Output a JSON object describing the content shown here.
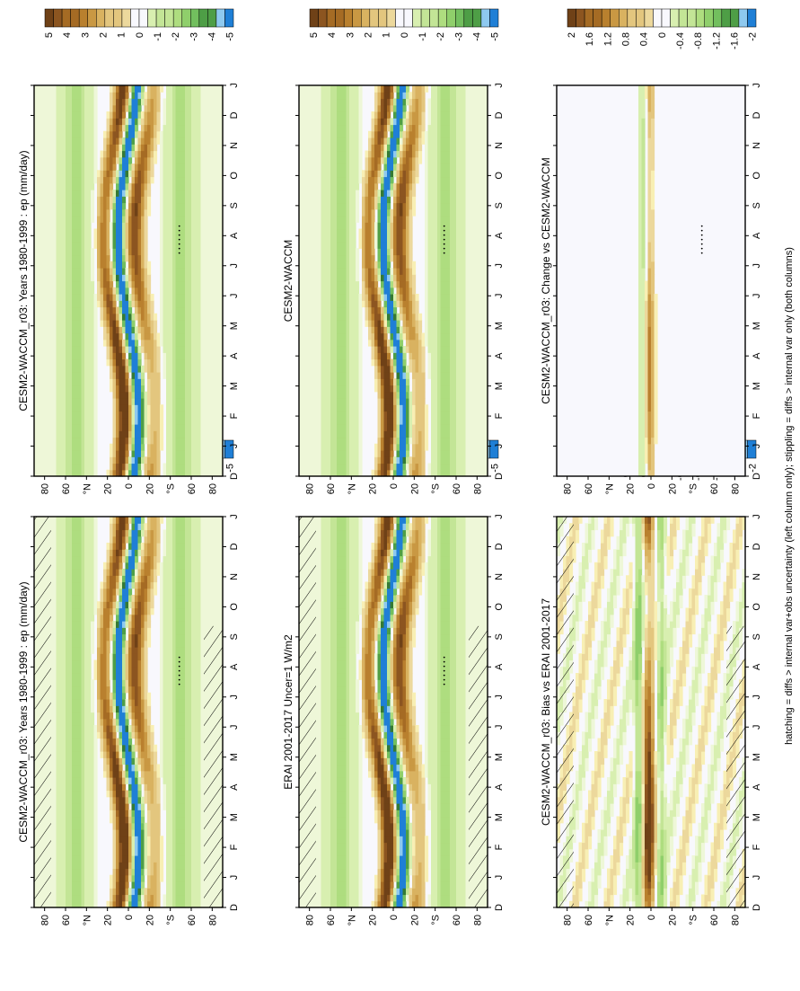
{
  "footnote": "hatching = diffs > internal var+obs uncertainty (left column only); stippling = diffs > internal var only (both columns)",
  "chart_data": [
    {
      "type": "heatmap",
      "title": "CESM2-WACCM_r03: Years 1980-1999 : ep (mm/day)",
      "x_ticks": [
        "D",
        "J",
        "F",
        "M",
        "A",
        "M",
        "J",
        "J",
        "A",
        "S",
        "O",
        "N",
        "D",
        "J"
      ],
      "y_ticks": [
        "80",
        "60",
        "°N",
        "20",
        "0",
        "20",
        "°S",
        "60",
        "80"
      ],
      "colorbar": {
        "labels": [
          "5",
          "4",
          "3",
          "2",
          "1",
          "0",
          "-1",
          "-2",
          "-3",
          "-4",
          "-5"
        ]
      },
      "hatching": true,
      "stippling": true,
      "field": {
        "kind": "climatology",
        "amplitude": 5
      }
    },
    {
      "type": "heatmap",
      "title": "CESM2-WACCM_r03: Years 1980-1999 : ep (mm/day)",
      "x_ticks": [
        "D",
        "J",
        "F",
        "M",
        "A",
        "M",
        "J",
        "J",
        "A",
        "S",
        "O",
        "N",
        "D",
        "J"
      ],
      "y_ticks": [
        "80",
        "60",
        "°N",
        "20",
        "0",
        "20",
        "°S",
        "60",
        "80"
      ],
      "colorbar": {
        "labels": [
          "5",
          "4",
          "3",
          "2",
          "1",
          "0",
          "-1",
          "-2",
          "-3",
          "-4",
          "-5"
        ]
      },
      "hatching": false,
      "stippling": true,
      "field": {
        "kind": "climatology",
        "amplitude": 5
      }
    },
    {
      "type": "heatmap",
      "title": "ERAI 2001-2017 Uncer=1 W/m2",
      "x_ticks": [
        "D",
        "J",
        "F",
        "M",
        "A",
        "M",
        "J",
        "J",
        "A",
        "S",
        "O",
        "N",
        "D",
        "J"
      ],
      "y_ticks": [
        "80",
        "60",
        "°N",
        "20",
        "0",
        "20",
        "°S",
        "60",
        "80"
      ],
      "colorbar": {
        "labels": [
          "5",
          "4",
          "3",
          "2",
          "1",
          "0",
          "-1",
          "-2",
          "-3",
          "-4",
          "-5"
        ]
      },
      "hatching": true,
      "stippling": true,
      "field": {
        "kind": "climatology",
        "amplitude": 5
      }
    },
    {
      "type": "heatmap",
      "title": "CESM2-WACCM",
      "x_ticks": [
        "D",
        "J",
        "F",
        "M",
        "A",
        "M",
        "J",
        "J",
        "A",
        "S",
        "O",
        "N",
        "D",
        "J"
      ],
      "y_ticks": [
        "80",
        "60",
        "°N",
        "20",
        "0",
        "20",
        "°S",
        "60",
        "80"
      ],
      "colorbar": {
        "labels": [
          "5",
          "4",
          "3",
          "2",
          "1",
          "0",
          "-1",
          "-2",
          "-3",
          "-4",
          "-5"
        ]
      },
      "hatching": false,
      "stippling": true,
      "field": {
        "kind": "climatology",
        "amplitude": 5
      }
    },
    {
      "type": "heatmap",
      "title": "CESM2-WACCM_r03: Bias vs ERAI 2001-2017",
      "x_ticks": [
        "D",
        "J",
        "F",
        "M",
        "A",
        "M",
        "J",
        "J",
        "A",
        "S",
        "O",
        "N",
        "D",
        "J"
      ],
      "y_ticks": [
        "80",
        "60",
        "°N",
        "20",
        "0",
        "20",
        "°S",
        "60",
        "80"
      ],
      "colorbar": {
        "labels": [
          "2",
          "1.6",
          "1.2",
          "0.8",
          "0.4",
          "0",
          "-0.4",
          "-0.8",
          "-1.2",
          "-1.6",
          "-2"
        ]
      },
      "hatching": true,
      "stippling": false,
      "field": {
        "kind": "bias",
        "amplitude": 2
      }
    },
    {
      "type": "heatmap",
      "title": "CESM2-WACCM_r03: Change vs CESM2-WACCM",
      "x_ticks": [
        "D",
        "J",
        "F",
        "M",
        "A",
        "M",
        "J",
        "J",
        "A",
        "S",
        "O",
        "N",
        "D",
        "J"
      ],
      "y_ticks": [
        "80",
        "60",
        "°N",
        "20",
        "0",
        "20",
        "°S",
        "60",
        "80"
      ],
      "colorbar": {
        "labels": [
          "2",
          "1.6",
          "1.2",
          "0.8",
          "0.4",
          "0",
          "-0.4",
          "-0.8",
          "-1.2",
          "-1.6",
          "-2"
        ]
      },
      "hatching": false,
      "stippling": true,
      "field": {
        "kind": "change",
        "amplitude": 2
      }
    }
  ],
  "colors": {
    "positive": [
      "#f8efb4",
      "#ecd89c",
      "#e3c67e",
      "#d9b260",
      "#c99843",
      "#b9802e",
      "#a56b24",
      "#8c5520",
      "#6f4117"
    ],
    "negative": [
      "#eef7d8",
      "#d8efb0",
      "#c3e596",
      "#aedd7f",
      "#8fcf6b",
      "#72bf5e",
      "#4e9e46",
      "#357a34",
      "#245f2a"
    ],
    "extreme_negative": [
      "#8ec9ef",
      "#1f7fd6"
    ],
    "neutral": "#f8f8fd"
  }
}
